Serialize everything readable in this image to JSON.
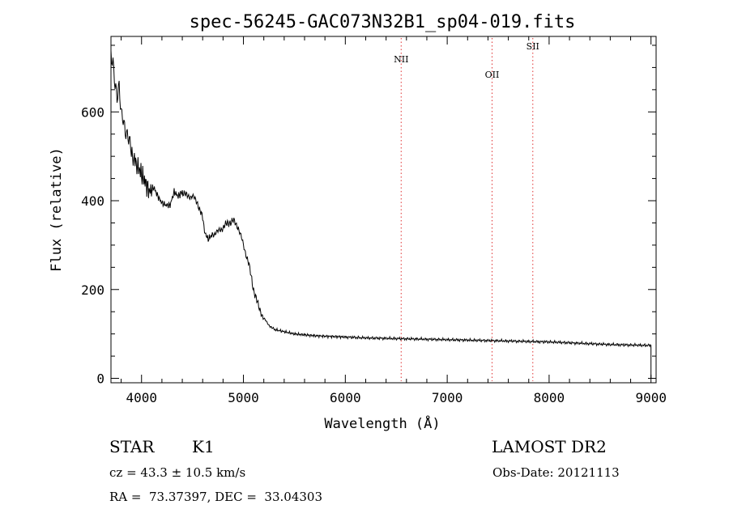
{
  "chart_data": {
    "type": "line",
    "title": "spec-56245-GAC073N32B1_sp04-019.fits",
    "xlabel": "Wavelength (Å)",
    "ylabel": "Flux (relative)",
    "xlim": [
      3700,
      9050
    ],
    "ylim": [
      -10,
      770
    ],
    "xticks": [
      4000,
      5000,
      6000,
      7000,
      8000,
      9000
    ],
    "yticks": [
      0,
      200,
      400,
      600
    ],
    "grid": false,
    "series": [
      {
        "color": "#000000",
        "x": [
          3700,
          3720,
          3740,
          3760,
          3780,
          3800,
          3820,
          3840,
          3860,
          3880,
          3900,
          3930,
          3960,
          4000,
          4040,
          4080,
          4120,
          4160,
          4200,
          4240,
          4280,
          4320,
          4360,
          4400,
          4450,
          4500,
          4550,
          4600,
          4630,
          4660,
          4700,
          4750,
          4800,
          4850,
          4900,
          4950,
          5000,
          5050,
          5100,
          5150,
          5200,
          5250,
          5300,
          5400,
          5500,
          5600,
          5700,
          5800,
          5900,
          6000,
          6200,
          6400,
          6600,
          6800,
          7000,
          7200,
          7400,
          7600,
          7800,
          8000,
          8200,
          8400,
          8600,
          8800,
          9000
        ],
        "y": [
          740,
          720,
          660,
          620,
          650,
          600,
          590,
          560,
          550,
          540,
          510,
          490,
          480,
          460,
          440,
          420,
          430,
          410,
          395,
          390,
          390,
          420,
          410,
          420,
          410,
          410,
          395,
          360,
          320,
          315,
          325,
          330,
          340,
          350,
          355,
          340,
          300,
          260,
          200,
          160,
          135,
          120,
          110,
          105,
          100,
          98,
          96,
          95,
          94,
          93,
          91,
          90,
          89,
          88,
          87,
          86,
          85,
          84,
          83,
          82,
          80,
          78,
          76,
          75,
          74
        ]
      }
    ],
    "lines": [
      {
        "label": "NII",
        "x": 6548,
        "color": "#e03030"
      },
      {
        "label": "OII",
        "x": 7440,
        "color": "#e03030"
      },
      {
        "label": "SII",
        "x": 7840,
        "color": "#e03030"
      }
    ]
  },
  "info": {
    "class_label": "STAR",
    "subclass": "K1",
    "survey": "LAMOST DR2",
    "cz": "cz = 43.3 ± 10.5 km/s",
    "obs_date": "Obs-Date: 20121113",
    "coords": "RA =  73.37397, DEC =  33.04303"
  }
}
